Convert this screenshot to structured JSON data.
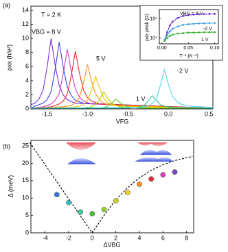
{
  "chart_data": [
    {
      "type": "line",
      "panel_label": "(a)",
      "xlabel": "VFG",
      "ylabel": "ρxx (h/e²)",
      "xlim": [
        -1.7,
        0.55
      ],
      "ylim": [
        0,
        14.6
      ],
      "xticks": [
        -1.5,
        {
          "value": -1,
          "label": "-1.0"
        },
        -0.5,
        {
          "value": 0,
          "label": "0.0"
        },
        0.5
      ],
      "yticks": [
        0,
        2,
        4,
        6,
        8,
        10,
        12,
        14
      ],
      "annotations": [
        {
          "text": "T = 2 K",
          "color": "#000000"
        },
        {
          "text": "VBG = 8 V",
          "color": "#7b2fd6"
        },
        {
          "text": "5 V",
          "color": "#f04a1a"
        },
        {
          "text": "1 V",
          "color": "#3bb33b"
        },
        {
          "text": "-2 V",
          "color": "#3cc8e0"
        }
      ],
      "series": [
        {
          "color": "#7b2fd6",
          "x": [
            -1.7,
            -1.65,
            -1.6,
            -1.55,
            -1.5,
            -1.45,
            -1.4,
            -1.35,
            -1.3,
            -1.25,
            -1.15,
            0.55
          ],
          "values": [
            0.6,
            0.8,
            1.4,
            2.6,
            5.9,
            10,
            6.2,
            3.3,
            2.0,
            1.3,
            0.8,
            0.1
          ]
        },
        {
          "color": "#3d3de8",
          "x": [
            -1.7,
            -1.65,
            -1.55,
            -1.5,
            -1.45,
            -1.4,
            -1.35,
            -1.3,
            -1.25,
            -1.2,
            -1.15,
            -1.05,
            0.55
          ],
          "values": [
            0.1,
            0.4,
            0.8,
            1.3,
            2.5,
            5.6,
            9.5,
            5.9,
            3.1,
            1.9,
            1.2,
            0.8,
            0.1
          ]
        },
        {
          "color": "#d43cc4",
          "x": [
            -1.7,
            -1.55,
            -1.45,
            -1.4,
            -1.35,
            -1.3,
            -1.25,
            -1.2,
            -1.15,
            -1.1,
            -1.05,
            -0.95,
            0.55
          ],
          "values": [
            0.1,
            0.3,
            0.7,
            1.2,
            2.2,
            5.0,
            8.5,
            5.3,
            2.8,
            1.7,
            1.1,
            0.7,
            0.1
          ]
        },
        {
          "color": "#f02a2a",
          "x": [
            -1.7,
            -1.45,
            -1.35,
            -1.3,
            -1.25,
            -1.2,
            -1.15,
            -1.1,
            -1.05,
            -1.0,
            -0.95,
            -0.85,
            0.55
          ],
          "values": [
            0.1,
            0.3,
            0.7,
            1.1,
            2.1,
            4.8,
            8.2,
            5.1,
            2.7,
            1.6,
            1.1,
            0.7,
            0.1
          ]
        },
        {
          "color": "#ff8c1a",
          "x": [
            -1.7,
            -1.3,
            -1.2,
            -1.15,
            -1.1,
            -1.05,
            -1.0,
            -0.95,
            -0.9,
            -0.85,
            -0.8,
            -0.7,
            0.55
          ],
          "values": [
            0.1,
            0.3,
            0.5,
            0.9,
            1.6,
            3.7,
            6.3,
            3.9,
            2.1,
            1.3,
            0.8,
            0.5,
            0.1
          ]
        },
        {
          "color": "#f2c200",
          "x": [
            -1.7,
            -1.2,
            -1.1,
            -1.05,
            -1.0,
            -0.95,
            -0.9,
            -0.85,
            -0.8,
            -0.75,
            -0.7,
            -0.6,
            0.55
          ],
          "values": [
            0.1,
            0.2,
            0.4,
            0.6,
            1.2,
            2.7,
            4.6,
            2.9,
            1.5,
            0.9,
            0.6,
            0.4,
            0.1
          ]
        },
        {
          "color": "#b5d400",
          "x": [
            -1.7,
            -1.1,
            -1.0,
            -0.95,
            -0.9,
            -0.85,
            -0.8,
            -0.75,
            -0.7,
            -0.65,
            -0.6,
            -0.5,
            0.55
          ],
          "values": [
            0.1,
            0.1,
            0.2,
            0.3,
            0.6,
            1.4,
            2.4,
            1.5,
            0.8,
            0.5,
            0.3,
            0.2,
            0.1
          ]
        },
        {
          "color": "#66cc33",
          "x": [
            -1.7,
            -0.95,
            -0.85,
            -0.8,
            -0.75,
            -0.7,
            -0.65,
            -0.6,
            -0.55,
            -0.5,
            -0.45,
            -0.35,
            0.55
          ],
          "values": [
            0.1,
            0.1,
            0.1,
            0.2,
            0.4,
            0.8,
            1.4,
            0.9,
            0.5,
            0.3,
            0.2,
            0.1,
            0.1
          ]
        },
        {
          "color": "#33c0a0",
          "x": [
            -1.7,
            -0.5,
            -0.4,
            -0.35,
            -0.3,
            -0.25,
            -0.2,
            -0.15,
            -0.1,
            -0.05,
            0,
            0.1,
            0.55
          ],
          "values": [
            0.1,
            0.1,
            0.2,
            0.3,
            0.5,
            1.1,
            1.9,
            1.2,
            0.6,
            0.4,
            0.3,
            0.2,
            0.1
          ]
        },
        {
          "color": "#4dd5e8",
          "x": [
            -1.7,
            -0.35,
            -0.25,
            -0.2,
            -0.15,
            -0.1,
            -0.05,
            0,
            0.05,
            0.1,
            0.15,
            0.25,
            0.55
          ],
          "values": [
            0.1,
            0.2,
            0.4,
            0.8,
            1.4,
            3.3,
            5.6,
            3.5,
            1.8,
            1.1,
            0.7,
            0.4,
            0.2
          ]
        }
      ]
    },
    {
      "type": "line",
      "log_y": true,
      "markers": true,
      "xlabel": "T⁻¹ (K⁻¹)",
      "ylabel": "ρxx peak (Ω)",
      "xlim": [
        -0.005,
        0.107
      ],
      "ylim": [
        5000,
        300000
      ],
      "xticks": [
        {
          "value": 0,
          "label": "0.00"
        },
        0.05,
        {
          "value": 0.1,
          "label": "0.10"
        }
      ],
      "yticks": [
        {
          "value": 10000,
          "label": "10⁴"
        },
        {
          "value": 100000,
          "label": "10⁵"
        }
      ],
      "annotations": [
        {
          "text": "VBG = 8 V",
          "color": "#7b2fd6"
        },
        {
          "text": "-2 V",
          "color": "#3aa0e0"
        },
        {
          "text": "1 V",
          "color": "#3bb33b"
        }
      ],
      "x": [
        0.005,
        0.01,
        0.015,
        0.02,
        0.03,
        0.04,
        0.05,
        0.06,
        0.07,
        0.08,
        0.09,
        0.1
      ],
      "series": [
        {
          "color": "#6a2fd0",
          "values": [
            8000,
            20000,
            45000,
            70000,
            110000,
            140000,
            155000,
            165000,
            170000,
            175000,
            178000,
            180000
          ]
        },
        {
          "color": "#3aa0e0",
          "values": [
            8000,
            14000,
            22000,
            30000,
            40000,
            48000,
            52000,
            55000,
            57000,
            58000,
            59000,
            60000
          ]
        },
        {
          "color": "#3bb33b",
          "values": [
            7000,
            10000,
            13000,
            15000,
            17000,
            18000,
            19000,
            19000,
            19500,
            20000,
            20000,
            20000
          ]
        }
      ]
    },
    {
      "type": "scatter",
      "panel_label": "(b)",
      "xlabel": "ΔVBG",
      "ylabel": "Δ (meV)",
      "xlim": [
        -5.2,
        8.6
      ],
      "ylim": [
        0,
        26.6
      ],
      "xticks": [
        -4,
        -2,
        0,
        2,
        4,
        6,
        8
      ],
      "yticks": [
        0,
        5,
        10,
        15,
        20,
        25
      ],
      "x": [
        -3,
        -2,
        -1,
        0,
        1,
        2,
        3,
        4,
        5,
        6,
        7
      ],
      "values": [
        11,
        8.7,
        6,
        5.5,
        6.7,
        9.2,
        11.6,
        14,
        15.5,
        16.7,
        17.5
      ],
      "colors": [
        "#3a78d8",
        "#35c0c8",
        "#3cc8a0",
        "#4cc040",
        "#90d030",
        "#c8d820",
        "#f0d020",
        "#ff9020",
        "#f03030",
        "#d040c0",
        "#8040d0"
      ],
      "curve": {
        "x": [
          -5.3,
          -4,
          -3,
          -2,
          -1,
          0,
          1,
          2,
          3,
          4,
          5,
          6,
          7,
          8.5
        ],
        "values": [
          26,
          19.6,
          14.7,
          9.8,
          4.9,
          0,
          5,
          9.5,
          13,
          15.8,
          18,
          19.6,
          20.8,
          22
        ],
        "style": "dashed"
      }
    }
  ]
}
